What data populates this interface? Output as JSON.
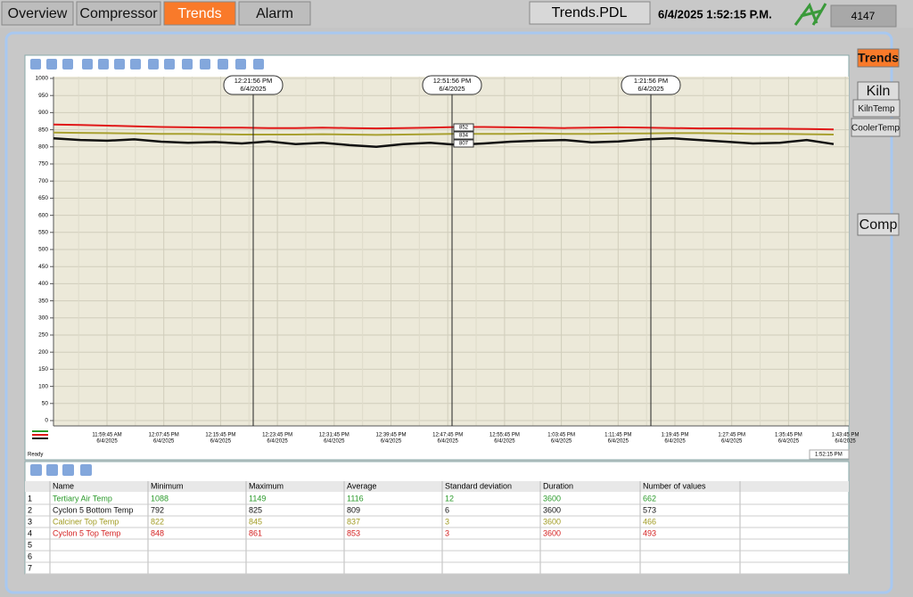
{
  "nav": {
    "tabs": [
      "Overview",
      "Compressor",
      "Trends",
      "Alarm"
    ],
    "page_name": "Trends.PDL",
    "datetime": "6/4/2025 1:52:15 P.M.",
    "counter": "4147"
  },
  "side_buttons": [
    "Trends",
    "Kiln",
    "KilnTemp",
    "CoolerTemp",
    "Comp"
  ],
  "trend": {
    "ylim": [
      0,
      1000
    ],
    "yticks": [
      0,
      50,
      100,
      150,
      200,
      250,
      300,
      350,
      400,
      450,
      500,
      550,
      600,
      650,
      700,
      750,
      800,
      850,
      900,
      950,
      1000
    ],
    "xticks": [
      {
        "time": "11:59:45 AM",
        "date": "6/4/2025"
      },
      {
        "time": "12:07:45 PM",
        "date": "6/4/2025"
      },
      {
        "time": "12:15:45 PM",
        "date": "6/4/2025"
      },
      {
        "time": "12:23:45 PM",
        "date": "6/4/2025"
      },
      {
        "time": "12:31:45 PM",
        "date": "6/4/2025"
      },
      {
        "time": "12:39:45 PM",
        "date": "6/4/2025"
      },
      {
        "time": "12:47:45 PM",
        "date": "6/4/2025"
      },
      {
        "time": "12:55:45 PM",
        "date": "6/4/2025"
      },
      {
        "time": "1:03:45 PM",
        "date": "6/4/2025"
      },
      {
        "time": "1:11:45 PM",
        "date": "6/4/2025"
      },
      {
        "time": "1:19:45 PM",
        "date": "6/4/2025"
      },
      {
        "time": "1:27:45 PM",
        "date": "6/4/2025"
      },
      {
        "time": "1:35:45 PM",
        "date": "6/4/2025"
      },
      {
        "time": "1:43:45 PM",
        "date": "6/4/2025"
      }
    ],
    "rulers": [
      {
        "time": "12:21:56 PM",
        "date": "6/4/2025"
      },
      {
        "time": "12:51:56 PM",
        "date": "6/4/2025"
      },
      {
        "time": "1:21:56 PM",
        "date": "6/4/2025"
      }
    ],
    "cursor_values": [
      852,
      834,
      807
    ],
    "series": [
      {
        "color": "#e01818",
        "values": [
          865,
          864,
          862,
          860,
          858,
          857,
          856,
          856,
          855,
          855,
          856,
          855,
          854,
          855,
          856,
          858,
          858,
          857,
          856,
          855,
          856,
          857,
          856,
          855,
          854,
          854,
          853,
          853,
          852,
          851
        ]
      },
      {
        "color": "#a8a030",
        "values": [
          842,
          841,
          840,
          839,
          838,
          838,
          837,
          836,
          836,
          836,
          837,
          836,
          835,
          836,
          837,
          838,
          838,
          838,
          839,
          838,
          838,
          839,
          839,
          840,
          840,
          839,
          838,
          838,
          837,
          836
        ]
      },
      {
        "color": "#111111",
        "values": [
          825,
          820,
          818,
          822,
          815,
          812,
          814,
          810,
          816,
          808,
          812,
          805,
          800,
          808,
          812,
          806,
          810,
          815,
          818,
          820,
          813,
          816,
          822,
          825,
          820,
          815,
          810,
          812,
          820,
          808
        ]
      }
    ],
    "status": "Ready",
    "status_time": "1:52:15 PM"
  },
  "table": {
    "columns": [
      "Name",
      "Minimum",
      "Maximum",
      "Average",
      "Standard deviation",
      "Duration",
      "Number of values"
    ],
    "row_numbers": [
      1,
      2,
      3,
      4,
      5,
      6,
      7
    ],
    "row_colors": [
      "#2a9a2a",
      "#111111",
      "#a09a20",
      "#d42020"
    ],
    "rows": [
      [
        "Tertiary Air Temp",
        "1088",
        "1149",
        "1116",
        "12",
        "3600",
        "662"
      ],
      [
        "Cyclon 5 Bottom Temp",
        "792",
        "825",
        "809",
        "6",
        "3600",
        "573"
      ],
      [
        "Calciner Top Temp",
        "822",
        "845",
        "837",
        "3",
        "3600",
        "466"
      ],
      [
        "Cyclon 5 Top Temp",
        "848",
        "861",
        "853",
        "3",
        "3600",
        "493"
      ]
    ]
  }
}
